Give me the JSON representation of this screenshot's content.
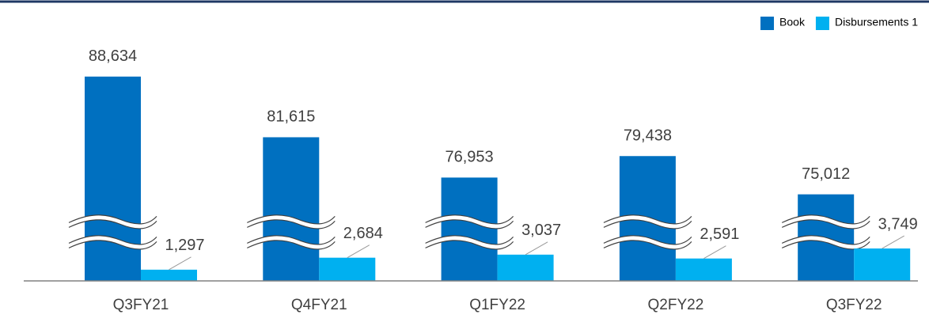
{
  "chart_data": {
    "type": "bar",
    "categories": [
      "Q3FY21",
      "Q4FY21",
      "Q1FY22",
      "Q2FY22",
      "Q3FY22"
    ],
    "series": [
      {
        "name": "Book",
        "color": "#0070c0",
        "values": [
          88634,
          81615,
          76953,
          79438,
          75012
        ],
        "value_labels": [
          "88,634",
          "81,615",
          "76,953",
          "79,438",
          "75,012"
        ]
      },
      {
        "name": "Disbursements 1",
        "color": "#00b0f0",
        "values": [
          1297,
          2684,
          3037,
          2591,
          3749
        ],
        "value_labels": [
          "1,297",
          "2,684",
          "3,037",
          "2,591",
          "3,749"
        ]
      }
    ],
    "ylim": [
      0,
      92000
    ],
    "axis_break": [
      5000,
      70000
    ],
    "legend": "top-right"
  }
}
